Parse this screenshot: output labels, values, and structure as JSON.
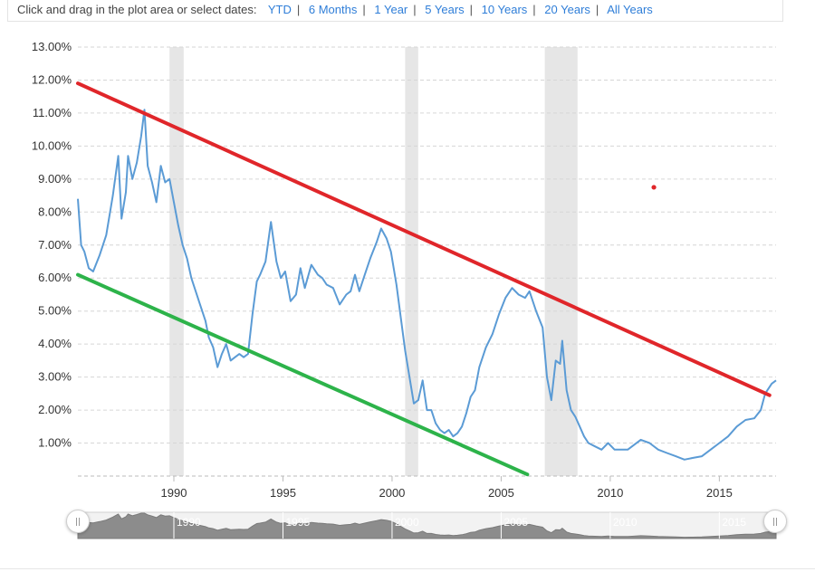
{
  "range_selector": {
    "prompt": "Click and drag in the plot area or select dates:",
    "options": [
      "YTD",
      "6 Months",
      "1 Year",
      "5 Years",
      "10 Years",
      "20 Years",
      "All Years"
    ]
  },
  "chart_data": {
    "type": "line",
    "title": "",
    "xlabel": "",
    "ylabel": "",
    "xlim": [
      1985.6,
      2017.6
    ],
    "ylim": [
      0,
      13
    ],
    "y_ticks": [
      "1.00%",
      "2.00%",
      "3.00%",
      "4.00%",
      "5.00%",
      "6.00%",
      "7.00%",
      "8.00%",
      "9.00%",
      "10.00%",
      "11.00%",
      "12.00%",
      "13.00%"
    ],
    "x_ticks": [
      "1990",
      "1995",
      "2000",
      "2005",
      "2010",
      "2015"
    ],
    "grid": "horizontal dashed",
    "recessions": [
      [
        1989.8,
        1990.45
      ],
      [
        2000.6,
        2001.2
      ],
      [
        2007.0,
        2008.5
      ]
    ],
    "series": [
      {
        "color": "#5b9bd5",
        "x": [
          1985.6,
          1985.75,
          1985.9,
          1986.1,
          1986.3,
          1986.6,
          1986.9,
          1987.2,
          1987.45,
          1987.6,
          1987.8,
          1987.9,
          1988.1,
          1988.3,
          1988.5,
          1988.65,
          1988.8,
          1989.0,
          1989.2,
          1989.4,
          1989.6,
          1989.8,
          1990.0,
          1990.2,
          1990.4,
          1990.6,
          1990.8,
          1991.0,
          1991.2,
          1991.45,
          1991.6,
          1991.8,
          1992.0,
          1992.2,
          1992.4,
          1992.6,
          1992.8,
          1993.0,
          1993.2,
          1993.4,
          1993.6,
          1993.8,
          1993.95,
          1994.2,
          1994.45,
          1994.7,
          1994.9,
          1995.1,
          1995.35,
          1995.6,
          1995.8,
          1996.0,
          1996.3,
          1996.6,
          1996.8,
          1997.0,
          1997.3,
          1997.6,
          1997.9,
          1998.1,
          1998.3,
          1998.5,
          1998.75,
          1999.0,
          1999.3,
          1999.5,
          1999.75,
          1999.95,
          2000.2,
          2000.4,
          2000.6,
          2000.8,
          2001.0,
          2001.2,
          2001.4,
          2001.6,
          2001.8,
          2002.0,
          2002.2,
          2002.4,
          2002.6,
          2002.8,
          2003.0,
          2003.2,
          2003.4,
          2003.6,
          2003.8,
          2004.0,
          2004.3,
          2004.6,
          2004.9,
          2005.2,
          2005.5,
          2005.8,
          2006.1,
          2006.3,
          2006.6,
          2006.9,
          2007.1,
          2007.3,
          2007.5,
          2007.7,
          2007.8,
          2008.0,
          2008.2,
          2008.4,
          2008.6,
          2008.8,
          2009.0,
          2009.3,
          2009.6,
          2009.9,
          2010.2,
          2010.5,
          2010.8,
          2011.0,
          2011.4,
          2011.8,
          2012.2,
          2012.6,
          2013.0,
          2013.4,
          2013.8,
          2014.2,
          2014.6,
          2015.0,
          2015.4,
          2015.8,
          2016.2,
          2016.6,
          2016.9,
          2017.1,
          2017.4,
          2017.6
        ],
        "y": [
          8.4,
          7.0,
          6.8,
          6.3,
          6.2,
          6.7,
          7.3,
          8.5,
          9.7,
          7.8,
          8.6,
          9.7,
          9.0,
          9.5,
          10.3,
          11.1,
          9.4,
          8.9,
          8.3,
          9.4,
          8.9,
          9.0,
          8.3,
          7.6,
          7.0,
          6.6,
          6.0,
          5.6,
          5.2,
          4.7,
          4.2,
          3.9,
          3.3,
          3.7,
          4.0,
          3.5,
          3.6,
          3.7,
          3.6,
          3.7,
          4.9,
          5.9,
          6.1,
          6.5,
          7.7,
          6.5,
          6.0,
          6.2,
          5.3,
          5.5,
          6.3,
          5.7,
          6.4,
          6.1,
          6.0,
          5.8,
          5.7,
          5.2,
          5.5,
          5.6,
          6.1,
          5.6,
          6.1,
          6.6,
          7.1,
          7.5,
          7.2,
          6.8,
          5.8,
          4.8,
          3.8,
          3.0,
          2.2,
          2.3,
          2.9,
          2.0,
          2.0,
          1.6,
          1.4,
          1.3,
          1.4,
          1.2,
          1.3,
          1.5,
          1.9,
          2.4,
          2.6,
          3.3,
          3.9,
          4.3,
          4.9,
          5.4,
          5.7,
          5.5,
          5.4,
          5.6,
          5.0,
          4.5,
          3.0,
          2.3,
          3.5,
          3.4,
          4.1,
          2.6,
          2.0,
          1.8,
          1.5,
          1.2,
          1.0,
          0.9,
          0.8,
          1.0,
          0.8,
          0.8,
          0.8,
          0.9,
          1.1,
          1.0,
          0.8,
          0.7,
          0.6,
          0.5,
          0.55,
          0.6,
          0.8,
          1.0,
          1.2,
          1.5,
          1.7,
          1.75,
          2.0,
          2.5,
          2.8,
          2.9
        ]
      }
    ],
    "annotations": [
      {
        "type": "trendline",
        "color": "#e0262a",
        "points": [
          [
            1985.6,
            11.9
          ],
          [
            2017.3,
            2.45
          ]
        ]
      },
      {
        "type": "trendline",
        "color": "#2db34a",
        "points": [
          [
            1985.6,
            6.1
          ],
          [
            2006.2,
            0.05
          ]
        ]
      },
      {
        "type": "point",
        "color": "#e0262a",
        "x": 2012.0,
        "y": 8.75
      }
    ],
    "navigator": {
      "x_ticks": [
        "1990",
        "1995",
        "2000",
        "2005",
        "2010",
        "2015"
      ]
    }
  }
}
